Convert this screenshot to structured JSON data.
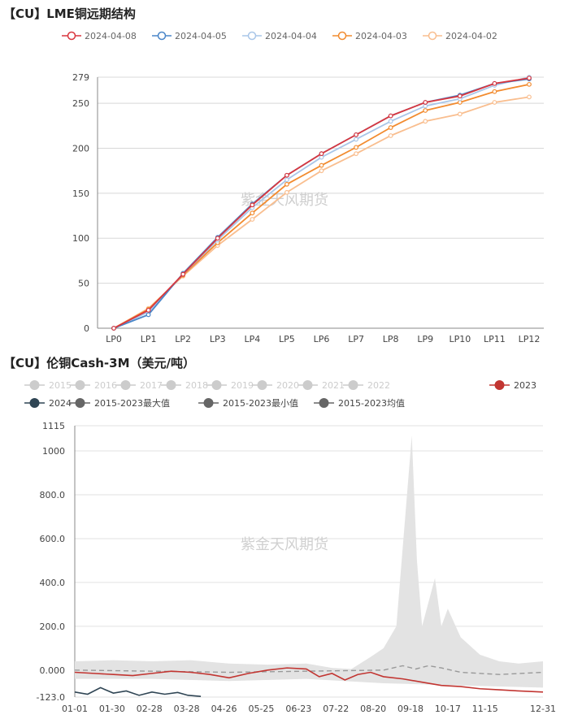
{
  "watermark": "紫金天风期货",
  "chart_data": [
    {
      "type": "line",
      "title": "【CU】LME铜远期结构",
      "categories": [
        "LP0",
        "LP1",
        "LP2",
        "LP3",
        "LP4",
        "LP5",
        "LP6",
        "LP7",
        "LP8",
        "LP9",
        "LP10",
        "LP11",
        "LP12"
      ],
      "ylim": [
        0,
        279
      ],
      "yticks": [
        0,
        50,
        100,
        150,
        200,
        250,
        279
      ],
      "grid": true,
      "legend_position": "top",
      "series": [
        {
          "name": "2024-04-08",
          "color": "#d9363e",
          "values": [
            0,
            20,
            60,
            100,
            137,
            170,
            194,
            215,
            236,
            251,
            258,
            272,
            278
          ]
        },
        {
          "name": "2024-04-05",
          "color": "#4a86c8",
          "values": [
            0,
            15,
            61,
            101,
            138,
            170,
            194,
            215,
            236,
            251,
            259,
            272,
            277
          ]
        },
        {
          "name": "2024-04-04",
          "color": "#a9c6e8",
          "values": [
            0,
            18,
            60,
            98,
            134,
            165,
            190,
            210,
            230,
            247,
            255,
            270,
            279
          ]
        },
        {
          "name": "2024-04-03",
          "color": "#f28b2f",
          "values": [
            0,
            21,
            59,
            95,
            128,
            160,
            181,
            201,
            223,
            242,
            251,
            263,
            271
          ]
        },
        {
          "name": "2024-04-02",
          "color": "#f9be8f",
          "values": [
            0,
            22,
            58,
            92,
            121,
            151,
            175,
            194,
            214,
            230,
            238,
            251,
            257
          ]
        }
      ]
    },
    {
      "type": "line",
      "title": "【CU】伦铜Cash-3M（美元/吨）",
      "x_tick_labels": [
        "01-01",
        "01-30",
        "02-28",
        "03-28",
        "04-26",
        "05-25",
        "06-23",
        "07-22",
        "08-20",
        "09-18",
        "10-17",
        "11-15",
        "12-31"
      ],
      "ylim": [
        -123,
        1115
      ],
      "yticks": [
        -123,
        0,
        200,
        400,
        600,
        800,
        1000,
        1115
      ],
      "ytick_labels": [
        "-123.0",
        "0.000",
        "200.0",
        "400.0",
        "600.0",
        "800.0",
        "1000",
        "1115"
      ],
      "grid": true,
      "legend_position": "top",
      "series": [
        {
          "name": "2015",
          "color": "#cccccc",
          "legend_inactive": true
        },
        {
          "name": "2016",
          "color": "#cccccc",
          "legend_inactive": true
        },
        {
          "name": "2017",
          "color": "#cccccc",
          "legend_inactive": true
        },
        {
          "name": "2018",
          "color": "#cccccc",
          "legend_inactive": true
        },
        {
          "name": "2019",
          "color": "#cccccc",
          "legend_inactive": true
        },
        {
          "name": "2020",
          "color": "#cccccc",
          "legend_inactive": true
        },
        {
          "name": "2021",
          "color": "#cccccc",
          "legend_inactive": true
        },
        {
          "name": "2022",
          "color": "#cccccc",
          "legend_inactive": true
        },
        {
          "name": "2023",
          "color": "#c23531",
          "x": [
            0,
            15,
            30,
            45,
            60,
            75,
            90,
            105,
            120,
            135,
            150,
            165,
            180,
            190,
            200,
            210,
            220,
            230,
            240,
            255,
            270,
            285,
            300,
            315,
            330,
            345,
            364
          ],
          "values": [
            -10,
            -15,
            -20,
            -25,
            -15,
            -5,
            -10,
            -20,
            -35,
            -15,
            0,
            10,
            5,
            -30,
            -15,
            -45,
            -20,
            -10,
            -30,
            -40,
            -55,
            -70,
            -75,
            -85,
            -90,
            -95,
            -100
          ]
        },
        {
          "name": "2024",
          "color": "#2f4554",
          "x": [
            0,
            10,
            20,
            30,
            40,
            50,
            60,
            70,
            80,
            88,
            98
          ],
          "values": [
            -100,
            -110,
            -80,
            -105,
            -95,
            -115,
            -100,
            -110,
            -102,
            -115,
            -120
          ]
        },
        {
          "name": "2015-2023最大值",
          "color": "#d9d9d9",
          "x": [
            0,
            30,
            60,
            90,
            120,
            150,
            180,
            200,
            215,
            230,
            240,
            250,
            262,
            266,
            270,
            280,
            285,
            290,
            300,
            315,
            330,
            345,
            364
          ],
          "values": [
            40,
            45,
            40,
            45,
            30,
            25,
            30,
            10,
            5,
            60,
            100,
            200,
            1070,
            500,
            200,
            420,
            200,
            280,
            150,
            70,
            40,
            30,
            40
          ]
        },
        {
          "name": "2015-2023最小值",
          "color": "#e8e8e8",
          "x": [
            0,
            60,
            120,
            180,
            240,
            300,
            364
          ],
          "values": [
            -40,
            -40,
            -50,
            -40,
            -60,
            -70,
            -80
          ]
        },
        {
          "name": "2015-2023均值",
          "color": "#999999",
          "x": [
            0,
            60,
            120,
            180,
            240,
            255,
            265,
            275,
            285,
            300,
            330,
            364
          ],
          "values": [
            0,
            -5,
            -10,
            -5,
            0,
            20,
            5,
            20,
            10,
            -10,
            -20,
            -10
          ]
        }
      ]
    }
  ]
}
